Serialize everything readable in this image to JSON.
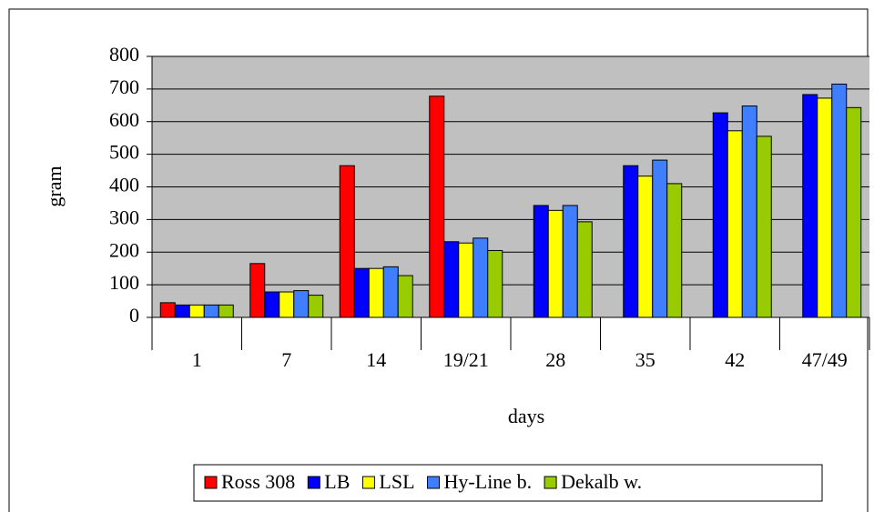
{
  "chart_data": {
    "type": "bar",
    "x_label": "days",
    "y_label": "gram",
    "categories": [
      "1",
      "7",
      "14",
      "19/21",
      "28",
      "35",
      "42",
      "47/49"
    ],
    "series": [
      {
        "name": "Ross 308",
        "color": "#ff0000",
        "values": [
          45,
          165,
          465,
          678,
          null,
          null,
          null,
          null
        ]
      },
      {
        "name": "LB",
        "color": "#0000ff",
        "values": [
          38,
          78,
          150,
          232,
          343,
          465,
          627,
          683
        ]
      },
      {
        "name": "LSL",
        "color": "#ffff00",
        "values": [
          38,
          78,
          150,
          228,
          328,
          433,
          572,
          672
        ]
      },
      {
        "name": "Hy-Line b.",
        "color": "#3f7fff",
        "values": [
          38,
          82,
          155,
          243,
          343,
          482,
          648,
          715
        ]
      },
      {
        "name": "Dekalb w.",
        "color": "#99cc00",
        "values": [
          38,
          68,
          128,
          205,
          293,
          410,
          555,
          643
        ]
      }
    ],
    "ylim": [
      0,
      800
    ],
    "yticks": [
      0,
      100,
      200,
      300,
      400,
      500,
      600,
      700,
      800
    ],
    "grid": true,
    "plot_background": "#c0c0c0",
    "legend": "bottom"
  }
}
